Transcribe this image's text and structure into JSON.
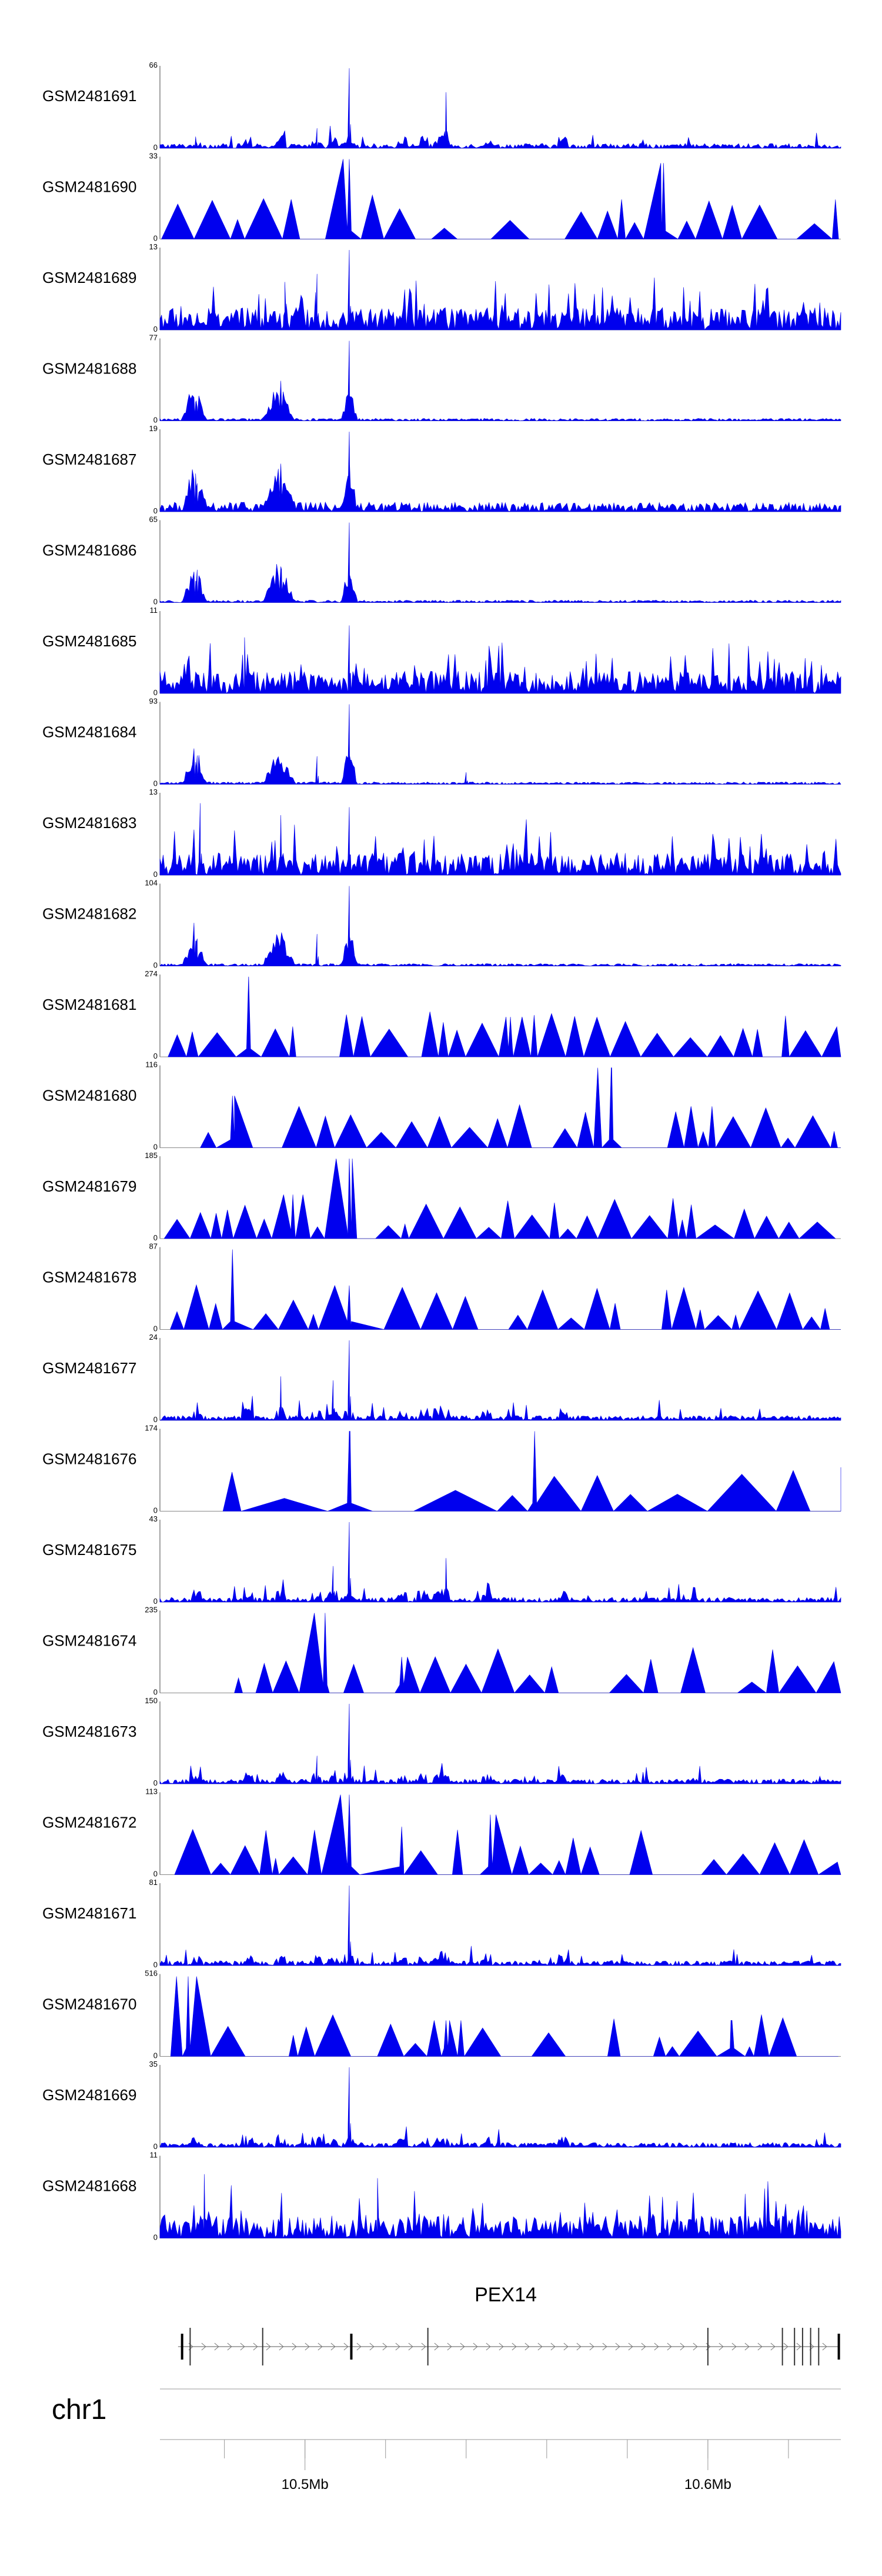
{
  "chart_data": {
    "type": "area",
    "title": "",
    "xlabel": "",
    "ylabel": "",
    "x_range_mb": [
      10.464,
      10.633
    ],
    "peak_positions_mb": [
      10.473,
      10.486,
      10.494,
      10.503,
      10.507,
      10.511,
      10.524,
      10.5295,
      10.533,
      10.5345,
      10.545,
      10.564
    ],
    "tracks": [
      {
        "name": "GSM2481691",
        "max": 66,
        "profile": "sparse",
        "peaks": [
          [
            10.503,
            0.25
          ],
          [
            10.511,
            1.0
          ],
          [
            10.535,
            0.7
          ],
          [
            10.473,
            0.08
          ]
        ]
      },
      {
        "name": "GSM2481690",
        "max": 33,
        "profile": "triangles",
        "peaks": [
          [
            10.511,
            1.0
          ],
          [
            10.589,
            0.95
          ]
        ]
      },
      {
        "name": "GSM2481689",
        "max": 13,
        "profile": "noisy",
        "peaks": [
          [
            10.511,
            1.0
          ],
          [
            10.503,
            0.7
          ],
          [
            10.495,
            0.6
          ]
        ]
      },
      {
        "name": "GSM2481688",
        "max": 77,
        "profile": "clusters",
        "peaks": [
          [
            10.473,
            0.25
          ],
          [
            10.494,
            0.5
          ],
          [
            10.511,
            1.0
          ]
        ]
      },
      {
        "name": "GSM2481687",
        "max": 19,
        "profile": "clusters-noisy",
        "peaks": [
          [
            10.473,
            0.3
          ],
          [
            10.494,
            0.6
          ],
          [
            10.511,
            1.0
          ]
        ]
      },
      {
        "name": "GSM2481686",
        "max": 65,
        "profile": "clusters",
        "peaks": [
          [
            10.473,
            0.25
          ],
          [
            10.494,
            0.45
          ],
          [
            10.511,
            1.0
          ]
        ]
      },
      {
        "name": "GSM2481685",
        "max": 11,
        "profile": "noisy",
        "peaks": [
          [
            10.511,
            0.85
          ],
          [
            10.485,
            0.7
          ]
        ]
      },
      {
        "name": "GSM2481684",
        "max": 93,
        "profile": "clusters",
        "peaks": [
          [
            10.473,
            0.2
          ],
          [
            10.503,
            0.35
          ],
          [
            10.511,
            1.0
          ],
          [
            10.54,
            0.15
          ]
        ]
      },
      {
        "name": "GSM2481683",
        "max": 13,
        "profile": "noisy",
        "peaks": [
          [
            10.474,
            0.9
          ],
          [
            10.511,
            0.85
          ],
          [
            10.494,
            0.75
          ]
        ]
      },
      {
        "name": "GSM2481682",
        "max": 104,
        "profile": "clusters",
        "peaks": [
          [
            10.473,
            0.3
          ],
          [
            10.503,
            0.4
          ],
          [
            10.511,
            1.0
          ]
        ]
      },
      {
        "name": "GSM2481681",
        "max": 274,
        "profile": "triangles",
        "peaks": [
          [
            10.486,
            1.0
          ],
          [
            10.551,
            0.5
          ]
        ]
      },
      {
        "name": "GSM2481680",
        "max": 116,
        "profile": "triangles",
        "peaks": [
          [
            10.576,
            1.0
          ],
          [
            10.482,
            0.65
          ]
        ]
      },
      {
        "name": "GSM2481679",
        "max": 185,
        "profile": "triangles",
        "peaks": [
          [
            10.511,
            1.0
          ],
          [
            10.497,
            0.55
          ]
        ]
      },
      {
        "name": "GSM2481678",
        "max": 87,
        "profile": "triangles",
        "peaks": [
          [
            10.482,
            1.0
          ],
          [
            10.511,
            0.55
          ]
        ]
      },
      {
        "name": "GSM2481677",
        "max": 24,
        "profile": "sparse",
        "peaks": [
          [
            10.511,
            1.0
          ],
          [
            10.507,
            0.5
          ],
          [
            10.494,
            0.55
          ]
        ]
      },
      {
        "name": "GSM2481676",
        "max": 174,
        "profile": "triangles",
        "peaks": [
          [
            10.511,
            1.0
          ],
          [
            10.557,
            1.0
          ]
        ]
      },
      {
        "name": "GSM2481675",
        "max": 43,
        "profile": "sparse",
        "peaks": [
          [
            10.511,
            1.0
          ],
          [
            10.535,
            0.55
          ],
          [
            10.507,
            0.45
          ]
        ]
      },
      {
        "name": "GSM2481674",
        "max": 235,
        "profile": "triangles",
        "peaks": [
          [
            10.505,
            1.0
          ],
          [
            10.524,
            0.45
          ]
        ]
      },
      {
        "name": "GSM2481673",
        "max": 150,
        "profile": "sparse",
        "peaks": [
          [
            10.511,
            1.0
          ],
          [
            10.503,
            0.35
          ]
        ]
      },
      {
        "name": "GSM2481672",
        "max": 113,
        "profile": "triangles",
        "peaks": [
          [
            10.511,
            1.0
          ],
          [
            10.546,
            0.75
          ],
          [
            10.524,
            0.6
          ]
        ]
      },
      {
        "name": "GSM2481671",
        "max": 81,
        "profile": "sparse",
        "peaks": [
          [
            10.511,
            1.0
          ]
        ]
      },
      {
        "name": "GSM2481670",
        "max": 516,
        "profile": "triangles",
        "peaks": [
          [
            10.471,
            1.0
          ],
          [
            10.535,
            0.45
          ],
          [
            10.606,
            0.45
          ]
        ]
      },
      {
        "name": "GSM2481669",
        "max": 35,
        "profile": "sparse",
        "peaks": [
          [
            10.511,
            1.0
          ]
        ]
      },
      {
        "name": "GSM2481668",
        "max": 11,
        "profile": "noisy",
        "peaks": [
          [
            10.475,
            0.8
          ],
          [
            10.518,
            0.75
          ]
        ]
      }
    ]
  },
  "gene": {
    "name": "PEX14",
    "start_mb": 10.4685,
    "end_mb": 10.633,
    "strand": "+",
    "exons_mb": [
      10.4695,
      10.4715,
      10.4895,
      10.5115,
      10.5305,
      10.6,
      10.6185,
      10.6215,
      10.6235,
      10.6255,
      10.6275,
      10.6325
    ]
  },
  "chromosome": {
    "label": "chr1"
  },
  "axis": {
    "ticks_mb": [
      10.48,
      10.5,
      10.52,
      10.54,
      10.56,
      10.58,
      10.6,
      10.62
    ],
    "labels": [
      {
        "value_mb": 10.5,
        "text": "10.5Mb"
      },
      {
        "value_mb": 10.6,
        "text": "10.6Mb"
      }
    ]
  },
  "colors": {
    "signal": "#0000ee",
    "signal_light": "#6a6af0",
    "axis": "#444444",
    "baseline": "#888888"
  }
}
